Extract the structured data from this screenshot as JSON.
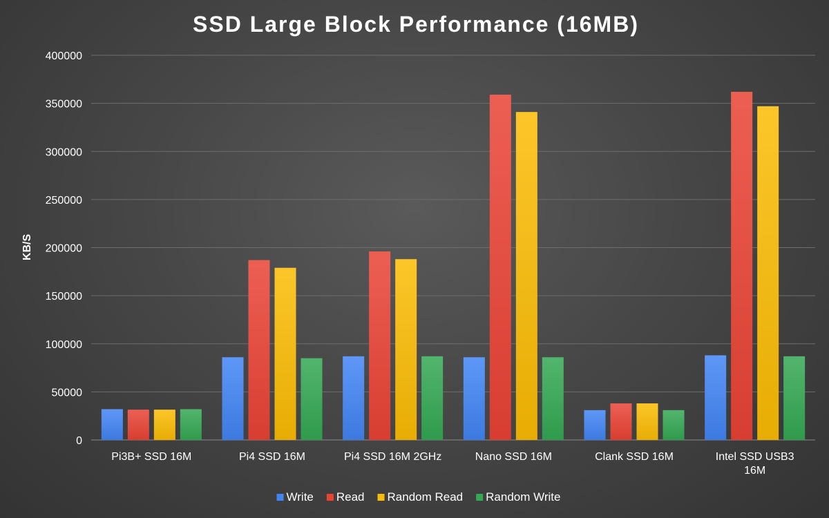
{
  "chart_data": {
    "type": "bar",
    "title": "SSD Large Block Performance (16MB)",
    "xlabel": "",
    "ylabel": "KB/S",
    "ylim": [
      0,
      400000
    ],
    "yticks": [
      0,
      50000,
      100000,
      150000,
      200000,
      250000,
      300000,
      350000,
      400000
    ],
    "grid": true,
    "legend_position": "bottom",
    "categories": [
      [
        "Pi3B+ SSD 16M"
      ],
      [
        "Pi4 SSD 16M"
      ],
      [
        "Pi4 SSD 16M 2GHz"
      ],
      [
        "Nano SSD 16M"
      ],
      [
        "Clank SSD 16M"
      ],
      [
        "Intel SSD USB3",
        "16M"
      ]
    ],
    "series": [
      {
        "name": "Write",
        "color": "#4285f4",
        "values": [
          32000,
          86000,
          87000,
          86000,
          31000,
          88000
        ]
      },
      {
        "name": "Read",
        "color": "#ea4335",
        "values": [
          31500,
          187000,
          196000,
          359000,
          38000,
          362000
        ]
      },
      {
        "name": "Random Read",
        "color": "#fbbc04",
        "values": [
          31500,
          179000,
          188000,
          341000,
          38000,
          347000
        ]
      },
      {
        "name": "Random Write",
        "color": "#34a853",
        "values": [
          32000,
          85000,
          87000,
          86000,
          31000,
          87000
        ]
      }
    ]
  }
}
